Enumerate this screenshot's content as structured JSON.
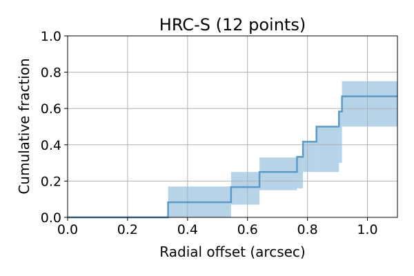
{
  "chart_data": {
    "type": "line",
    "title": "HRC-S (12 points)",
    "xlabel": "Radial offset (arcsec)",
    "ylabel": "Cumulative fraction",
    "xlim": [
      0.0,
      1.1
    ],
    "ylim": [
      0.0,
      1.0
    ],
    "xticks": [
      "0.0",
      "0.2",
      "0.4",
      "0.6",
      "0.8",
      "1.0"
    ],
    "yticks": [
      "0.0",
      "0.2",
      "0.4",
      "0.6",
      "0.8",
      "1.0"
    ],
    "grid": true,
    "colors": {
      "line": "#5b9ac7",
      "band": "#b6d3e8",
      "grid": "#b0b0b0",
      "axis": "#000000"
    },
    "series": [
      {
        "step_x": [
          0.0,
          0.335,
          0.545,
          0.64,
          0.765,
          0.785,
          0.83,
          0.905,
          0.915,
          1.1
        ],
        "cumulative": [
          0.0,
          0.083,
          0.167,
          0.25,
          0.333,
          0.417,
          0.5,
          0.583,
          0.667,
          0.667
        ],
        "band_lower": [
          0.0,
          0.0,
          0.07,
          0.15,
          0.16,
          0.25,
          0.25,
          0.3,
          0.5,
          0.5
        ],
        "band_upper": [
          0.005,
          0.17,
          0.25,
          0.33,
          0.33,
          0.42,
          0.5,
          0.58,
          0.75,
          0.83
        ]
      }
    ]
  }
}
